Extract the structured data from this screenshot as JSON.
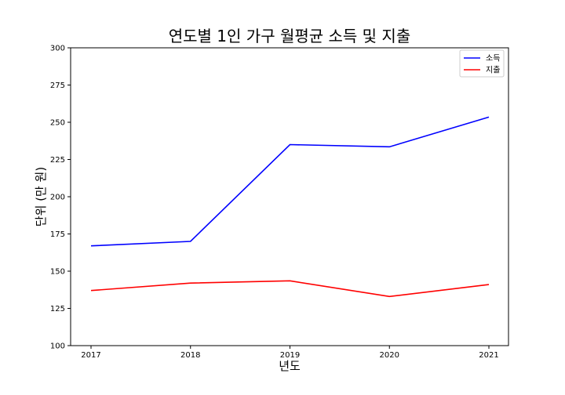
{
  "chart_data": {
    "type": "line",
    "title": "연도별 1인 가구 월평균 소득 및 지출",
    "xlabel": "년도",
    "ylabel": "단위 (만 원)",
    "categories": [
      "2017",
      "2018",
      "2019",
      "2020",
      "2021"
    ],
    "ylim": [
      100,
      300
    ],
    "yticks": [
      100,
      125,
      150,
      175,
      200,
      225,
      250,
      275,
      300
    ],
    "grid": false,
    "legend_position": "top-right",
    "series": [
      {
        "name": "소득",
        "color": "#0000ff",
        "values": [
          167,
          170,
          235,
          233.5,
          253.5
        ]
      },
      {
        "name": "지출",
        "color": "#ff0000",
        "values": [
          137,
          142,
          143.5,
          133,
          141
        ]
      }
    ]
  }
}
